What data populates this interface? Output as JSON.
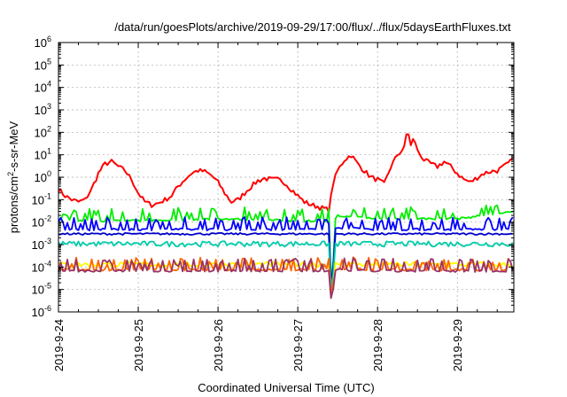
{
  "chart_data": {
    "type": "line",
    "title": "/data/run/goesPlots/archive/2019-09-29/17:00/flux/../flux/5daysEarthFluxes.txt",
    "xlabel": "Coordinated Universal Time (UTC)",
    "ylabel": {
      "main": "protons/cm",
      "sup": "2",
      "rest": "-s-sr-MeV"
    },
    "y_scale": "log",
    "ylim": [
      1e-06,
      1000000.0
    ],
    "xlim": [
      "2019-09-24T00:00",
      "2019-09-29T17:00"
    ],
    "x_ticks": [
      "2019-9-24",
      "2019-9-25",
      "2019-9-26",
      "2019-9-27",
      "2019-9-28",
      "2019-9-29"
    ],
    "y_ticks": [
      {
        "value": 1e-06,
        "base": "10",
        "exp": "-6"
      },
      {
        "value": 1e-05,
        "base": "10",
        "exp": "-5"
      },
      {
        "value": 0.0001,
        "base": "10",
        "exp": "-4"
      },
      {
        "value": 0.001,
        "base": "10",
        "exp": "-3"
      },
      {
        "value": 0.01,
        "base": "10",
        "exp": "-2"
      },
      {
        "value": 0.1,
        "base": "10",
        "exp": "-1"
      },
      {
        "value": 1,
        "base": "10",
        "exp": "0"
      },
      {
        "value": 10,
        "base": "10",
        "exp": "1"
      },
      {
        "value": 100,
        "base": "10",
        "exp": "2"
      },
      {
        "value": 1000,
        "base": "10",
        "exp": "3"
      },
      {
        "value": 10000,
        "base": "10",
        "exp": "4"
      },
      {
        "value": 100000,
        "base": "10",
        "exp": "5"
      },
      {
        "value": 1000000,
        "base": "10",
        "exp": "6"
      }
    ],
    "grid": true,
    "legend": "none",
    "series": [
      {
        "color": "#ff0000",
        "pattern": "smooth",
        "points": [
          [
            "2019-09-24T00:00",
            0.3
          ],
          [
            "2019-09-24T02:00",
            0.15
          ],
          [
            "2019-09-24T04:00",
            0.1
          ],
          [
            "2019-09-24T06:00",
            0.08
          ],
          [
            "2019-09-24T08:00",
            0.1
          ],
          [
            "2019-09-24T10:00",
            0.3
          ],
          [
            "2019-09-24T12:00",
            1.5
          ],
          [
            "2019-09-24T14:00",
            4
          ],
          [
            "2019-09-24T16:00",
            5
          ],
          [
            "2019-09-24T18:00",
            3
          ],
          [
            "2019-09-24T20:00",
            2
          ],
          [
            "2019-09-24T22:00",
            0.8
          ],
          [
            "2019-09-25T00:00",
            0.2
          ],
          [
            "2019-09-25T02:00",
            0.08
          ],
          [
            "2019-09-25T04:00",
            0.06
          ],
          [
            "2019-09-25T06:00",
            0.07
          ],
          [
            "2019-09-25T08:00",
            0.1
          ],
          [
            "2019-09-25T10:00",
            0.15
          ],
          [
            "2019-09-25T12:00",
            0.4
          ],
          [
            "2019-09-25T14:00",
            0.8
          ],
          [
            "2019-09-25T16:00",
            1.5
          ],
          [
            "2019-09-25T18:00",
            2
          ],
          [
            "2019-09-25T20:00",
            1.8
          ],
          [
            "2019-09-25T22:00",
            1.2
          ],
          [
            "2019-09-26T00:00",
            0.6
          ],
          [
            "2019-09-26T02:00",
            0.2
          ],
          [
            "2019-09-26T04:00",
            0.08
          ],
          [
            "2019-09-26T06:00",
            0.1
          ],
          [
            "2019-09-26T08:00",
            0.2
          ],
          [
            "2019-09-26T10:00",
            0.4
          ],
          [
            "2019-09-26T12:00",
            0.7
          ],
          [
            "2019-09-26T14:00",
            0.9
          ],
          [
            "2019-09-26T16:00",
            0.8
          ],
          [
            "2019-09-26T18:00",
            0.8
          ],
          [
            "2019-09-26T20:00",
            0.6
          ],
          [
            "2019-09-26T22:00",
            0.3
          ],
          [
            "2019-09-27T00:00",
            0.15
          ],
          [
            "2019-09-27T02:00",
            0.08
          ],
          [
            "2019-09-27T04:00",
            0.06
          ],
          [
            "2019-09-27T06:00",
            0.05
          ],
          [
            "2019-09-27T08:00",
            0.04
          ],
          [
            "2019-09-27T09:30",
            0.035
          ],
          [
            "2019-09-27T10:30",
            0.5
          ],
          [
            "2019-09-27T12:00",
            2
          ],
          [
            "2019-09-27T14:00",
            6
          ],
          [
            "2019-09-27T16:00",
            10
          ],
          [
            "2019-09-27T18:00",
            4
          ],
          [
            "2019-09-27T20:00",
            2
          ],
          [
            "2019-09-27T22:00",
            1
          ],
          [
            "2019-09-28T00:00",
            0.8
          ],
          [
            "2019-09-28T02:00",
            0.5
          ],
          [
            "2019-09-28T04:00",
            3
          ],
          [
            "2019-09-28T06:00",
            10
          ],
          [
            "2019-09-28T08:00",
            20
          ],
          [
            "2019-09-28T09:00",
            160
          ],
          [
            "2019-09-28T10:00",
            25
          ],
          [
            "2019-09-28T11:00",
            60
          ],
          [
            "2019-09-28T12:00",
            15
          ],
          [
            "2019-09-28T14:00",
            6
          ],
          [
            "2019-09-28T16:00",
            4
          ],
          [
            "2019-09-28T18:00",
            3
          ],
          [
            "2019-09-28T20:00",
            5
          ],
          [
            "2019-09-28T22:00",
            3
          ],
          [
            "2019-09-29T00:00",
            1.5
          ],
          [
            "2019-09-29T02:00",
            0.8
          ],
          [
            "2019-09-29T04:00",
            0.6
          ],
          [
            "2019-09-29T06:00",
            1
          ],
          [
            "2019-09-29T08:00",
            1.5
          ],
          [
            "2019-09-29T10:00",
            1.8
          ],
          [
            "2019-09-29T12:00",
            2
          ],
          [
            "2019-09-29T14:00",
            3
          ],
          [
            "2019-09-29T16:00",
            5
          ],
          [
            "2019-09-29T17:00",
            10
          ]
        ]
      },
      {
        "color": "#00ee00",
        "pattern": "spiky",
        "points": [
          [
            "2019-09-24T00:00",
            0.012
          ],
          [
            "2019-09-25T00:00",
            0.012
          ],
          [
            "2019-09-26T00:00",
            0.015
          ],
          [
            "2019-09-27T00:00",
            0.012
          ],
          [
            "2019-09-27T11:00",
            0.012
          ],
          [
            "2019-09-27T12:00",
            0.02
          ],
          [
            "2019-09-28T00:00",
            0.015
          ],
          [
            "2019-09-29T00:00",
            0.015
          ],
          [
            "2019-09-29T17:00",
            0.03
          ]
        ]
      },
      {
        "color": "#0000ff",
        "pattern": "spiky",
        "points": [
          [
            "2019-09-24T00:00",
            0.005
          ],
          [
            "2019-09-25T00:00",
            0.005
          ],
          [
            "2019-09-26T00:00",
            0.005
          ],
          [
            "2019-09-27T00:00",
            0.005
          ],
          [
            "2019-09-27T11:00",
            0.005
          ],
          [
            "2019-09-27T12:00",
            0.006
          ],
          [
            "2019-09-28T00:00",
            0.005
          ],
          [
            "2019-09-29T00:00",
            0.005
          ],
          [
            "2019-09-29T17:00",
            0.005
          ]
        ]
      },
      {
        "color": "#0000cc",
        "pattern": "flat",
        "points": [
          [
            "2019-09-24T00:00",
            0.003
          ],
          [
            "2019-09-25T00:00",
            0.003
          ],
          [
            "2019-09-26T00:00",
            0.003
          ],
          [
            "2019-09-27T00:00",
            0.003
          ],
          [
            "2019-09-27T11:00",
            0.003
          ],
          [
            "2019-09-27T12:00",
            0.003
          ],
          [
            "2019-09-28T00:00",
            0.003
          ],
          [
            "2019-09-29T00:00",
            0.003
          ],
          [
            "2019-09-29T17:00",
            0.003
          ]
        ]
      },
      {
        "color": "#00ccaa",
        "pattern": "noisy",
        "points": [
          [
            "2019-09-24T00:00",
            0.001
          ],
          [
            "2019-09-25T00:00",
            0.001
          ],
          [
            "2019-09-26T00:00",
            0.001
          ],
          [
            "2019-09-27T00:00",
            0.001
          ],
          [
            "2019-09-27T11:00",
            0.001
          ],
          [
            "2019-09-27T12:00",
            0.001
          ],
          [
            "2019-09-28T00:00",
            0.001
          ],
          [
            "2019-09-29T00:00",
            0.001
          ],
          [
            "2019-09-29T17:00",
            0.001
          ]
        ]
      },
      {
        "color": "#ffff00",
        "pattern": "noisy",
        "points": [
          [
            "2019-09-24T00:00",
            0.00012
          ],
          [
            "2019-09-25T00:00",
            0.00012
          ],
          [
            "2019-09-26T00:00",
            0.00012
          ],
          [
            "2019-09-27T00:00",
            0.00012
          ],
          [
            "2019-09-27T11:00",
            0.00012
          ],
          [
            "2019-09-27T12:00",
            0.00013
          ],
          [
            "2019-09-28T00:00",
            0.00012
          ],
          [
            "2019-09-29T00:00",
            0.00012
          ],
          [
            "2019-09-29T17:00",
            0.00012
          ]
        ]
      },
      {
        "color": "#ff6600",
        "pattern": "spiky",
        "points": [
          [
            "2019-09-24T00:00",
            8e-05
          ],
          [
            "2019-09-25T00:00",
            8e-05
          ],
          [
            "2019-09-26T00:00",
            8e-05
          ],
          [
            "2019-09-27T00:00",
            8e-05
          ],
          [
            "2019-09-27T11:00",
            8e-05
          ],
          [
            "2019-09-27T12:00",
            9e-05
          ],
          [
            "2019-09-28T00:00",
            8e-05
          ],
          [
            "2019-09-29T00:00",
            8e-05
          ],
          [
            "2019-09-29T17:00",
            8e-05
          ]
        ]
      },
      {
        "color": "#993366",
        "pattern": "spiky",
        "points": [
          [
            "2019-09-24T00:00",
            7e-05
          ],
          [
            "2019-09-25T00:00",
            7e-05
          ],
          [
            "2019-09-26T00:00",
            7e-05
          ],
          [
            "2019-09-27T00:00",
            7e-05
          ],
          [
            "2019-09-27T11:00",
            7e-05
          ],
          [
            "2019-09-27T12:00",
            8e-05
          ],
          [
            "2019-09-28T00:00",
            7e-05
          ],
          [
            "2019-09-29T00:00",
            7e-05
          ],
          [
            "2019-09-29T17:00",
            7e-05
          ]
        ]
      }
    ],
    "dropout": {
      "start": "2019-09-27T09:30",
      "bottom": "2019-09-27T10:15",
      "end": "2019-09-27T11:00",
      "min": 1e-06
    }
  }
}
